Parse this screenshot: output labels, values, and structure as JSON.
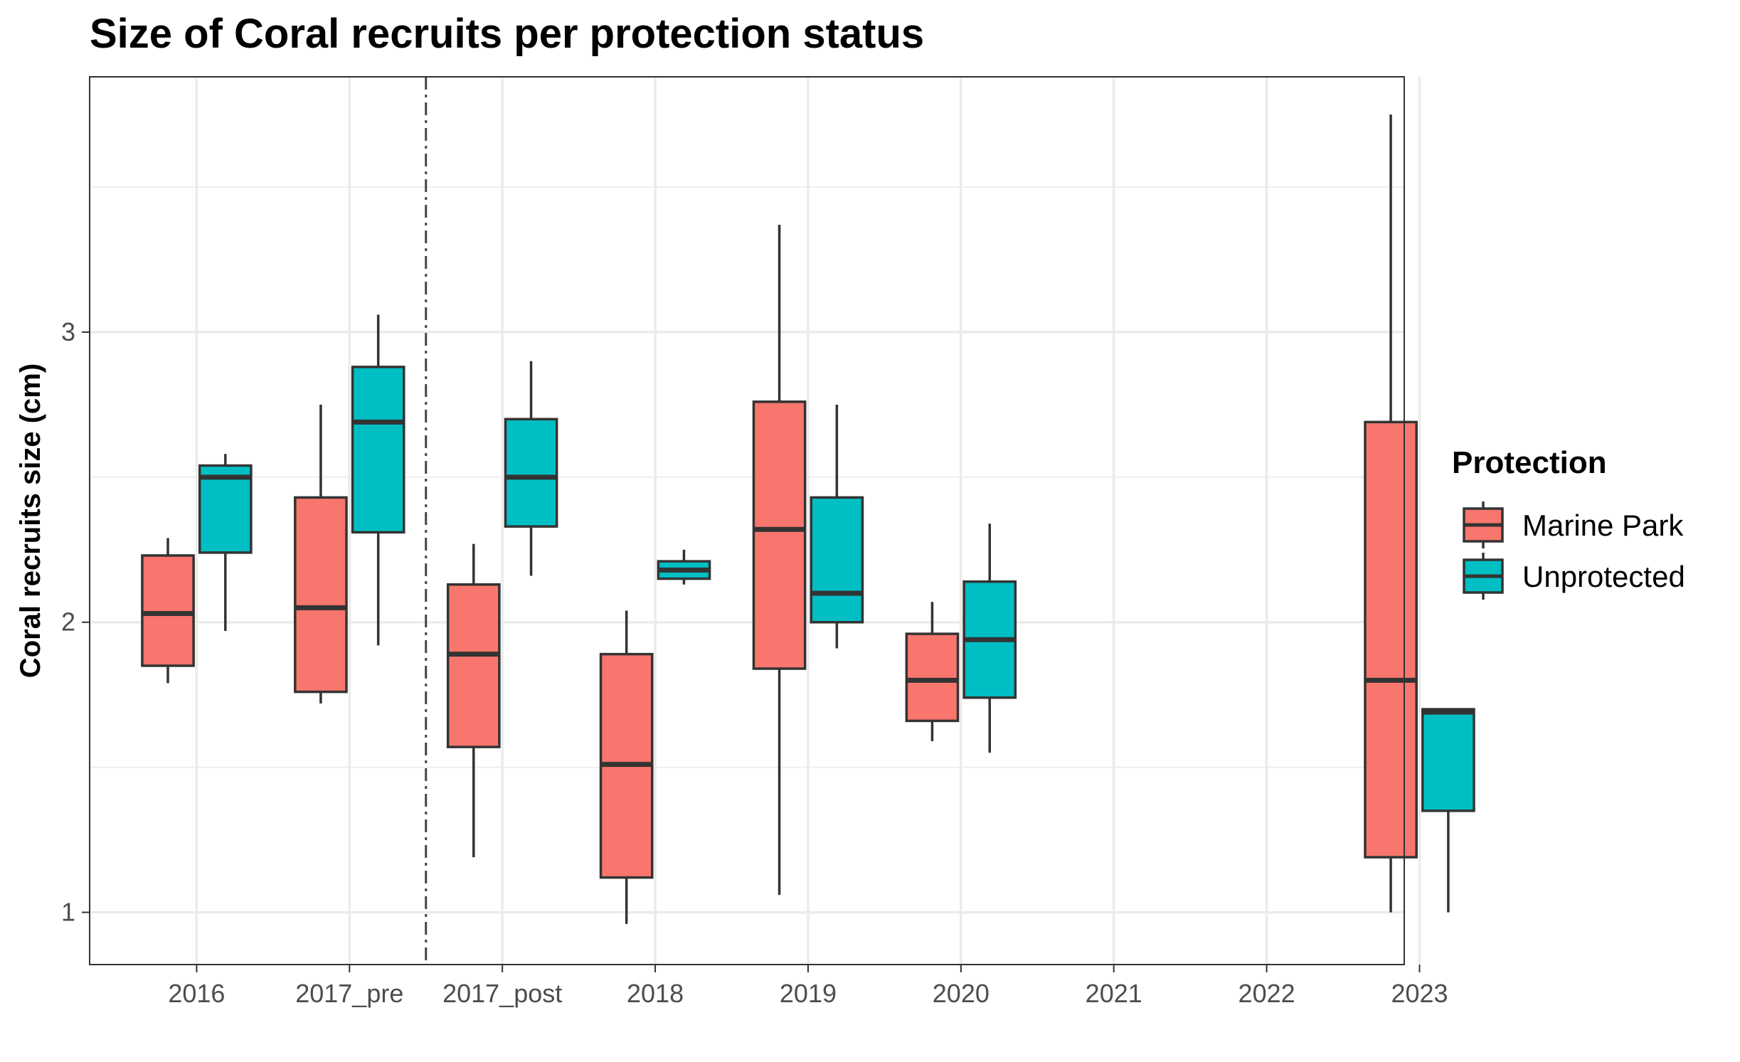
{
  "chart_data": {
    "type": "boxplot",
    "title": "Size of Coral recruits per protection status",
    "ylabel": "Coral recruits size (cm)",
    "xlabel": "",
    "categories": [
      "2016",
      "2017_pre",
      "2017_post",
      "2018",
      "2019",
      "2020",
      "2021",
      "2022",
      "2023"
    ],
    "ylim": [
      0.82,
      3.88
    ],
    "yticks": [
      1,
      2,
      3
    ],
    "grid": true,
    "divider_between": [
      "2017_pre",
      "2017_post"
    ],
    "legend": {
      "title": "Protection",
      "position": "right"
    },
    "series": [
      {
        "name": "Marine Park",
        "color": "#F8766D",
        "boxes": [
          {
            "category": "2016",
            "min": 1.79,
            "q1": 1.85,
            "median": 2.03,
            "q3": 2.23,
            "max": 2.29
          },
          {
            "category": "2017_pre",
            "min": 1.72,
            "q1": 1.76,
            "median": 2.05,
            "q3": 2.43,
            "max": 2.75
          },
          {
            "category": "2017_post",
            "min": 1.19,
            "q1": 1.57,
            "median": 1.89,
            "q3": 2.13,
            "max": 2.27
          },
          {
            "category": "2018",
            "min": 0.96,
            "q1": 1.12,
            "median": 1.51,
            "q3": 1.89,
            "max": 2.04
          },
          {
            "category": "2019",
            "min": 1.06,
            "q1": 1.84,
            "median": 2.32,
            "q3": 2.76,
            "max": 3.37
          },
          {
            "category": "2020",
            "min": 1.59,
            "q1": 1.66,
            "median": 1.8,
            "q3": 1.96,
            "max": 2.07
          },
          {
            "category": "2023",
            "min": 1.0,
            "q1": 1.19,
            "median": 1.8,
            "q3": 2.69,
            "max": 3.75
          }
        ]
      },
      {
        "name": "Unprotected",
        "color": "#00BFC4",
        "boxes": [
          {
            "category": "2016",
            "min": 1.97,
            "q1": 2.24,
            "median": 2.5,
            "q3": 2.54,
            "max": 2.58
          },
          {
            "category": "2017_pre",
            "min": 1.92,
            "q1": 2.31,
            "median": 2.69,
            "q3": 2.88,
            "max": 3.06
          },
          {
            "category": "2017_post",
            "min": 2.16,
            "q1": 2.33,
            "median": 2.5,
            "q3": 2.7,
            "max": 2.9
          },
          {
            "category": "2018",
            "min": 2.13,
            "q1": 2.15,
            "median": 2.18,
            "q3": 2.21,
            "max": 2.25
          },
          {
            "category": "2019",
            "min": 1.91,
            "q1": 2.0,
            "median": 2.1,
            "q3": 2.43,
            "max": 2.75
          },
          {
            "category": "2020",
            "min": 1.55,
            "q1": 1.74,
            "median": 1.94,
            "q3": 2.14,
            "max": 2.34
          },
          {
            "category": "2023",
            "min": 1.0,
            "q1": 1.35,
            "median": 1.69,
            "q3": 1.7,
            "max": 1.7
          }
        ]
      }
    ]
  }
}
